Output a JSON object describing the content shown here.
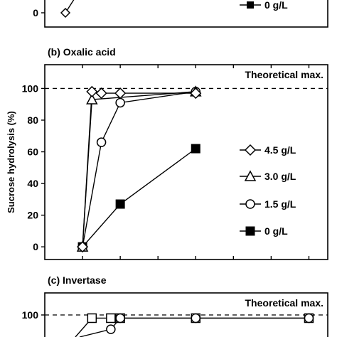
{
  "chart_data": [
    {
      "panel": "a",
      "type": "line",
      "legend": [
        {
          "label": "0 g/L",
          "marker": "square-filled"
        }
      ],
      "y_tick_labels": [
        "0"
      ],
      "visible_points": [
        {
          "x": 0,
          "y": 0
        }
      ]
    },
    {
      "panel": "b",
      "type": "line",
      "title": "(b) Oxalic acid",
      "ylabel": "Sucrose hydrolysis (%)",
      "annotation": "Theoretical max.",
      "reference_line": 100,
      "ylim": [
        -8,
        115
      ],
      "xlim": [
        -1,
        6.5
      ],
      "y_ticks": [
        0,
        20,
        40,
        60,
        80,
        100
      ],
      "y_tick_labels": [
        "0",
        "20",
        "40",
        "60",
        "80",
        "100"
      ],
      "x_ticks": [
        0,
        1,
        2,
        3,
        4,
        5,
        6
      ],
      "legend_position": "right",
      "series": [
        {
          "name": "4.5 g/L",
          "marker": "diamond-open",
          "x": [
            0,
            0.25,
            0.5,
            1,
            3
          ],
          "y": [
            0,
            98,
            97,
            97,
            97
          ]
        },
        {
          "name": "3.0 g/L",
          "marker": "triangle-open",
          "x": [
            0,
            0.25,
            3
          ],
          "y": [
            0,
            93,
            98
          ]
        },
        {
          "name": "1.5 g/L",
          "marker": "circle-open",
          "x": [
            0,
            0.5,
            1,
            3
          ],
          "y": [
            0,
            66,
            91,
            98
          ]
        },
        {
          "name": "0 g/L",
          "marker": "square-filled",
          "x": [
            0,
            1,
            3
          ],
          "y": [
            0,
            27,
            62
          ]
        }
      ]
    },
    {
      "panel": "c",
      "type": "line",
      "title": "(c) Invertase",
      "annotation": "Theoretical max.",
      "reference_line": 100,
      "y_tick_labels": [
        "100"
      ],
      "visible_points": [
        {
          "x": 0.25,
          "y": 98,
          "marker": "square-open"
        },
        {
          "x": 0.75,
          "y": 98,
          "marker": "square-open"
        },
        {
          "x": 1,
          "y": 98,
          "marker": "square-open"
        },
        {
          "x": 3,
          "y": 98,
          "marker": "square-open"
        },
        {
          "x": 6,
          "y": 98,
          "marker": "square-open"
        },
        {
          "x": 0.75,
          "y": 91,
          "marker": "circle-open"
        },
        {
          "x": 1,
          "y": 98,
          "marker": "circle-open"
        },
        {
          "x": 3,
          "y": 98,
          "marker": "circle-open"
        },
        {
          "x": 6,
          "y": 98,
          "marker": "circle-open"
        }
      ]
    }
  ]
}
